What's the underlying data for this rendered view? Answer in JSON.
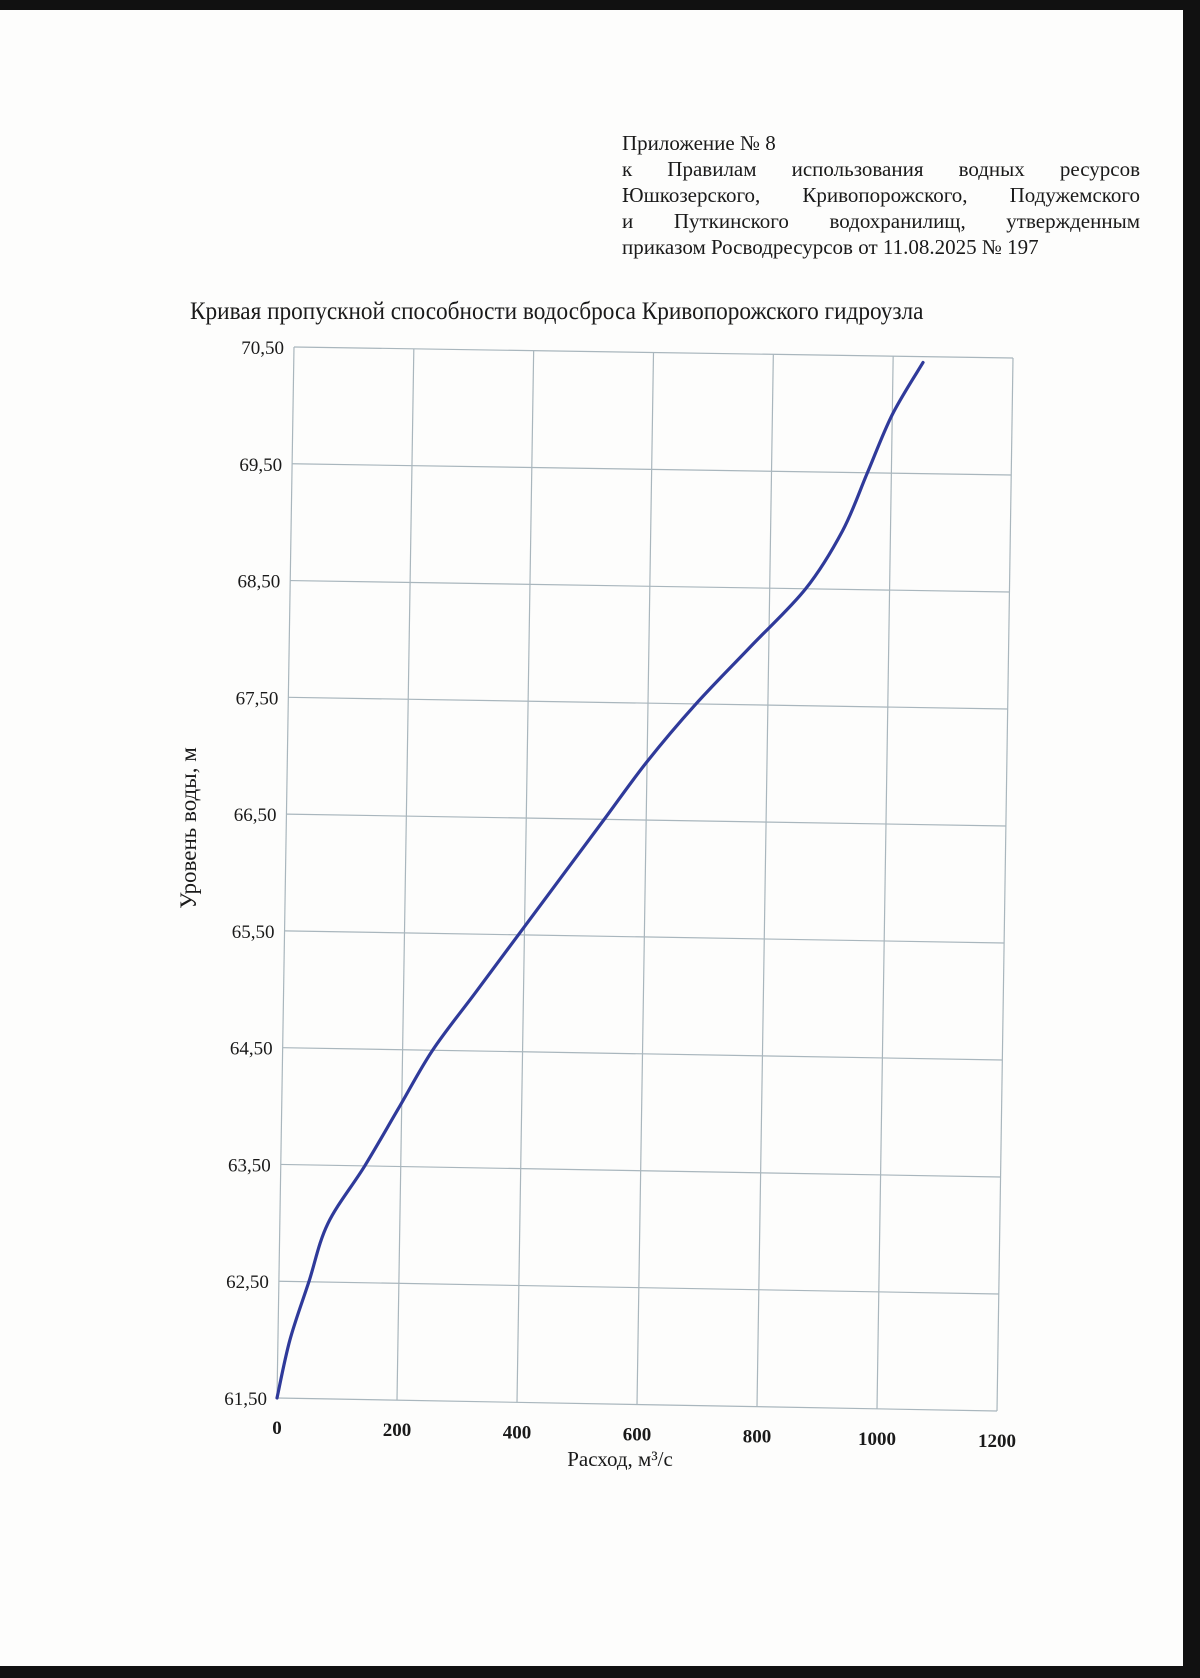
{
  "document": {
    "appendix": {
      "lines": [
        "Приложение № 8",
        "к Правилам использования водных ресурсов",
        "Юшкозерского, Кривопорожского, Подужемского",
        "и Путкинского водохранилищ, утвержденным",
        "приказом Росводресурсов от 11.08.2025 № 197"
      ]
    }
  },
  "colors": {
    "curve": "#2f3a9a",
    "grid": "#a9b6bd",
    "page": "#fdfdfc",
    "scan_border": "#111111"
  },
  "chart_data": {
    "type": "line",
    "title": "Кривая пропускной способности водосброса Кривопорожского гидроузла",
    "xlabel": "Расход, м³/с",
    "ylabel": "Уровень воды, м",
    "xlim": [
      0,
      1200
    ],
    "ylim": [
      61.5,
      70.5
    ],
    "x_ticks": [
      "0",
      "200",
      "400",
      "600",
      "800",
      "1000",
      "1200"
    ],
    "y_ticks": [
      "61,50",
      "62,50",
      "63,50",
      "64,50",
      "65,50",
      "66,50",
      "67,50",
      "68,50",
      "69,50",
      "70,50"
    ],
    "grid": true,
    "legend": null,
    "series": [
      {
        "name": "Кривая пропускной способности",
        "x": [
          0,
          20,
          50,
          80,
          140,
          195,
          250,
          320,
          390,
          460,
          530,
          600,
          680,
          770,
          860,
          920,
          960,
          1000,
          1050
        ],
        "y": [
          61.5,
          62.0,
          62.5,
          63.0,
          63.5,
          64.0,
          64.5,
          65.0,
          65.5,
          66.0,
          66.5,
          67.0,
          67.5,
          68.0,
          68.5,
          69.0,
          69.5,
          70.0,
          70.45
        ]
      }
    ]
  }
}
